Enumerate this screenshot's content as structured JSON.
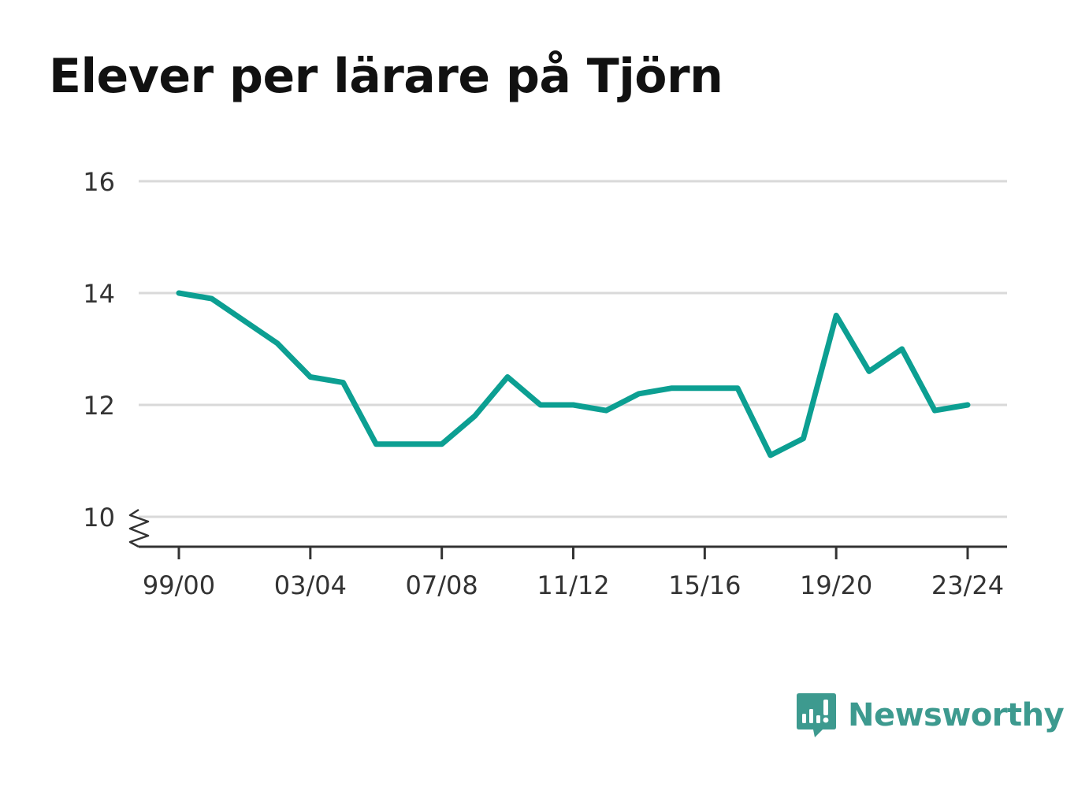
{
  "title": "Elever per lärare på Tjörn",
  "brand": {
    "name": "Newsworthy",
    "icon": "newsworthy-logo-icon",
    "color": "#3d9a8f"
  },
  "colors": {
    "line": "#0c9f92",
    "grid": "#d9d9d9",
    "axis": "#333333"
  },
  "chart_data": {
    "type": "line",
    "title": "Elever per lärare på Tjörn",
    "xlabel": "",
    "ylabel": "",
    "x": [
      "99/00",
      "00/01",
      "01/02",
      "02/03",
      "03/04",
      "04/05",
      "05/06",
      "06/07",
      "07/08",
      "08/09",
      "09/10",
      "10/11",
      "11/12",
      "12/13",
      "13/14",
      "14/15",
      "15/16",
      "16/17",
      "17/18",
      "18/19",
      "19/20",
      "20/21",
      "21/22",
      "22/23",
      "23/24"
    ],
    "x_tick_labels": [
      "99/00",
      "03/04",
      "07/08",
      "11/12",
      "15/16",
      "19/20",
      "23/24"
    ],
    "ylim": [
      10,
      16
    ],
    "y_ticks": [
      10,
      12,
      14,
      16
    ],
    "y_axis_break": true,
    "grid": true,
    "series": [
      {
        "values": [
          14.0,
          13.9,
          13.5,
          13.1,
          12.5,
          12.4,
          11.3,
          11.3,
          11.3,
          11.8,
          12.5,
          12.0,
          12.0,
          11.9,
          12.2,
          12.3,
          12.3,
          12.3,
          11.1,
          11.4,
          13.6,
          12.6,
          13.0,
          11.9,
          12.0
        ]
      }
    ]
  }
}
